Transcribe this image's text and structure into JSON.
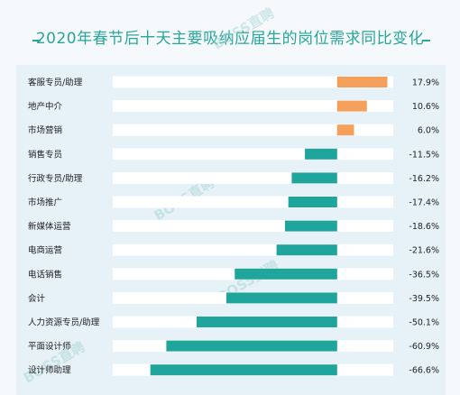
{
  "title": "2020年春节后十天主要吸纳应届生的岗位需求同比变化",
  "watermark": "BOSS直聘",
  "colors": {
    "positive": "#f5a05a",
    "negative": "#1fa59b",
    "title": "#2aa59a",
    "track": "#ffffff",
    "panel": "#e6f1f8"
  },
  "chart_data": {
    "type": "bar",
    "orientation": "horizontal",
    "title": "2020年春节后十天主要吸纳应届生的岗位需求同比变化",
    "categories": [
      "客服专员/助理",
      "地产中介",
      "市场营销",
      "销售专员",
      "行政专员/助理",
      "市场推广",
      "新媒体运营",
      "电商运营",
      "电话销售",
      "会计",
      "人力资源专员/助理",
      "平面设计师",
      "设计师助理"
    ],
    "values": [
      17.9,
      10.6,
      6.0,
      -11.5,
      -16.2,
      -17.4,
      -18.6,
      -21.6,
      -36.5,
      -39.5,
      -50.1,
      -60.9,
      -66.6
    ],
    "value_labels": [
      "17.9%",
      "10.6%",
      "6.0%",
      "-11.5%",
      "-16.2%",
      "-17.4%",
      "-18.6%",
      "-21.6%",
      "-36.5%",
      "-39.5%",
      "-50.1%",
      "-60.9%",
      "-66.6%"
    ],
    "xlim": [
      -80,
      20
    ],
    "grid": false,
    "legend": "none"
  }
}
